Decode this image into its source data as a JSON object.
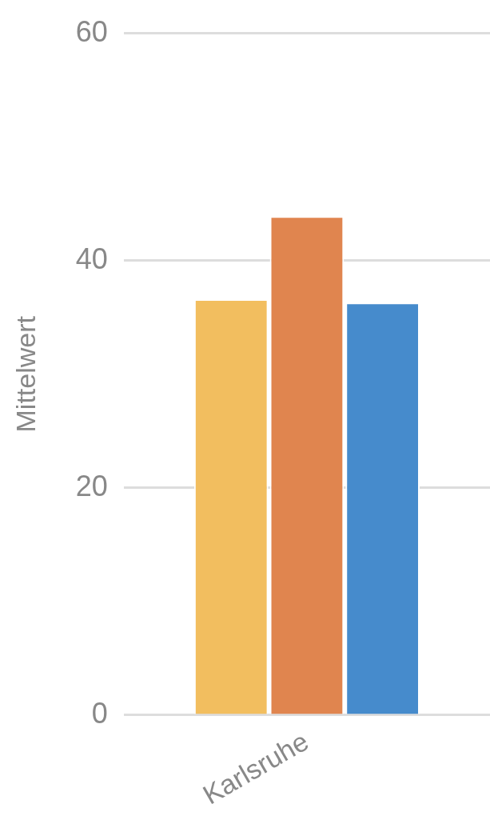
{
  "chart_data": {
    "type": "bar",
    "ylabel": "Mittelwert",
    "categories": [
      "Karlsruhe"
    ],
    "series": [
      {
        "color": "#f2be5f",
        "values": [
          36.6
        ]
      },
      {
        "color": "#e0854f",
        "values": [
          43.9
        ]
      },
      {
        "color": "#468bcc",
        "values": [
          36.3
        ]
      }
    ],
    "ylim": [
      0,
      60
    ],
    "yticks": [
      0,
      20,
      40,
      60
    ],
    "grid": "y",
    "legend": false
  }
}
